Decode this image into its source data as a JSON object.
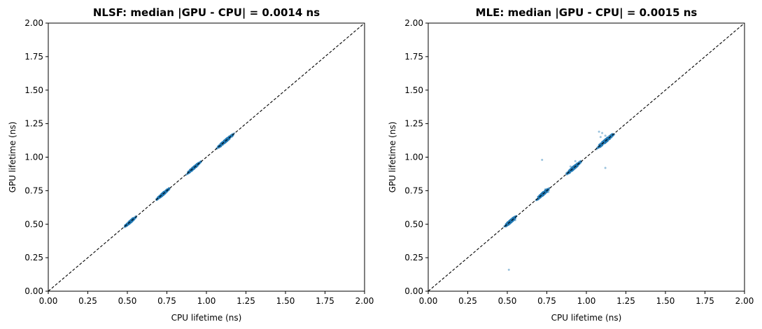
{
  "chart_data": [
    {
      "type": "scatter",
      "title": "NLSF: median |GPU - CPU| = 0.0014 ns",
      "xlabel": "CPU lifetime (ns)",
      "ylabel": "GPU lifetime (ns)",
      "xlim": [
        0,
        2
      ],
      "ylim": [
        0,
        2
      ],
      "xticks": [
        "0.00",
        "0.25",
        "0.50",
        "0.75",
        "1.00",
        "1.25",
        "1.50",
        "1.75",
        "2.00"
      ],
      "yticks": [
        "0.00",
        "0.25",
        "0.50",
        "0.75",
        "1.00",
        "1.25",
        "1.50",
        "1.75",
        "2.00"
      ],
      "grid": false,
      "point_color": "#1f77b4",
      "reference_line": {
        "x": [
          0,
          2
        ],
        "y": [
          0,
          2
        ],
        "style": "dashed",
        "color": "#000000"
      },
      "clusters": [
        {
          "x_range": [
            0.48,
            0.56
          ],
          "spread": 0.008
        },
        {
          "x_range": [
            0.68,
            0.77
          ],
          "spread": 0.008
        },
        {
          "x_range": [
            0.87,
            0.97
          ],
          "spread": 0.008
        },
        {
          "x_range": [
            1.06,
            1.18
          ],
          "spread": 0.009
        }
      ],
      "outliers": []
    },
    {
      "type": "scatter",
      "title": "MLE: median |GPU - CPU| = 0.0015 ns",
      "xlabel": "CPU lifetime (ns)",
      "ylabel": "GPU lifetime (ns)",
      "xlim": [
        0,
        2
      ],
      "ylim": [
        0,
        2
      ],
      "xticks": [
        "0.00",
        "0.25",
        "0.50",
        "0.75",
        "1.00",
        "1.25",
        "1.50",
        "1.75",
        "2.00"
      ],
      "yticks": [
        "0.00",
        "0.25",
        "0.50",
        "0.75",
        "1.00",
        "1.25",
        "1.50",
        "1.75",
        "2.00"
      ],
      "grid": false,
      "point_color": "#1f77b4",
      "reference_line": {
        "x": [
          0,
          2
        ],
        "y": [
          0,
          2
        ],
        "style": "dashed",
        "color": "#000000"
      },
      "clusters": [
        {
          "x_range": [
            0.48,
            0.56
          ],
          "spread": 0.01
        },
        {
          "x_range": [
            0.68,
            0.77
          ],
          "spread": 0.01
        },
        {
          "x_range": [
            0.87,
            0.97
          ],
          "spread": 0.01
        },
        {
          "x_range": [
            1.06,
            1.18
          ],
          "spread": 0.011
        }
      ],
      "outliers": [
        {
          "x": 0.72,
          "y": 0.98
        },
        {
          "x": 0.51,
          "y": 0.16
        },
        {
          "x": 1.12,
          "y": 0.92
        },
        {
          "x": 1.08,
          "y": 1.19
        },
        {
          "x": 1.1,
          "y": 1.18
        },
        {
          "x": 1.12,
          "y": 1.16
        },
        {
          "x": 1.09,
          "y": 1.15
        },
        {
          "x": 0.93,
          "y": 0.97
        },
        {
          "x": 0.74,
          "y": 0.76
        },
        {
          "x": 0.76,
          "y": 0.74
        },
        {
          "x": 0.9,
          "y": 0.93
        },
        {
          "x": 1.15,
          "y": 1.14
        },
        {
          "x": 0.55,
          "y": 0.53
        }
      ]
    }
  ]
}
